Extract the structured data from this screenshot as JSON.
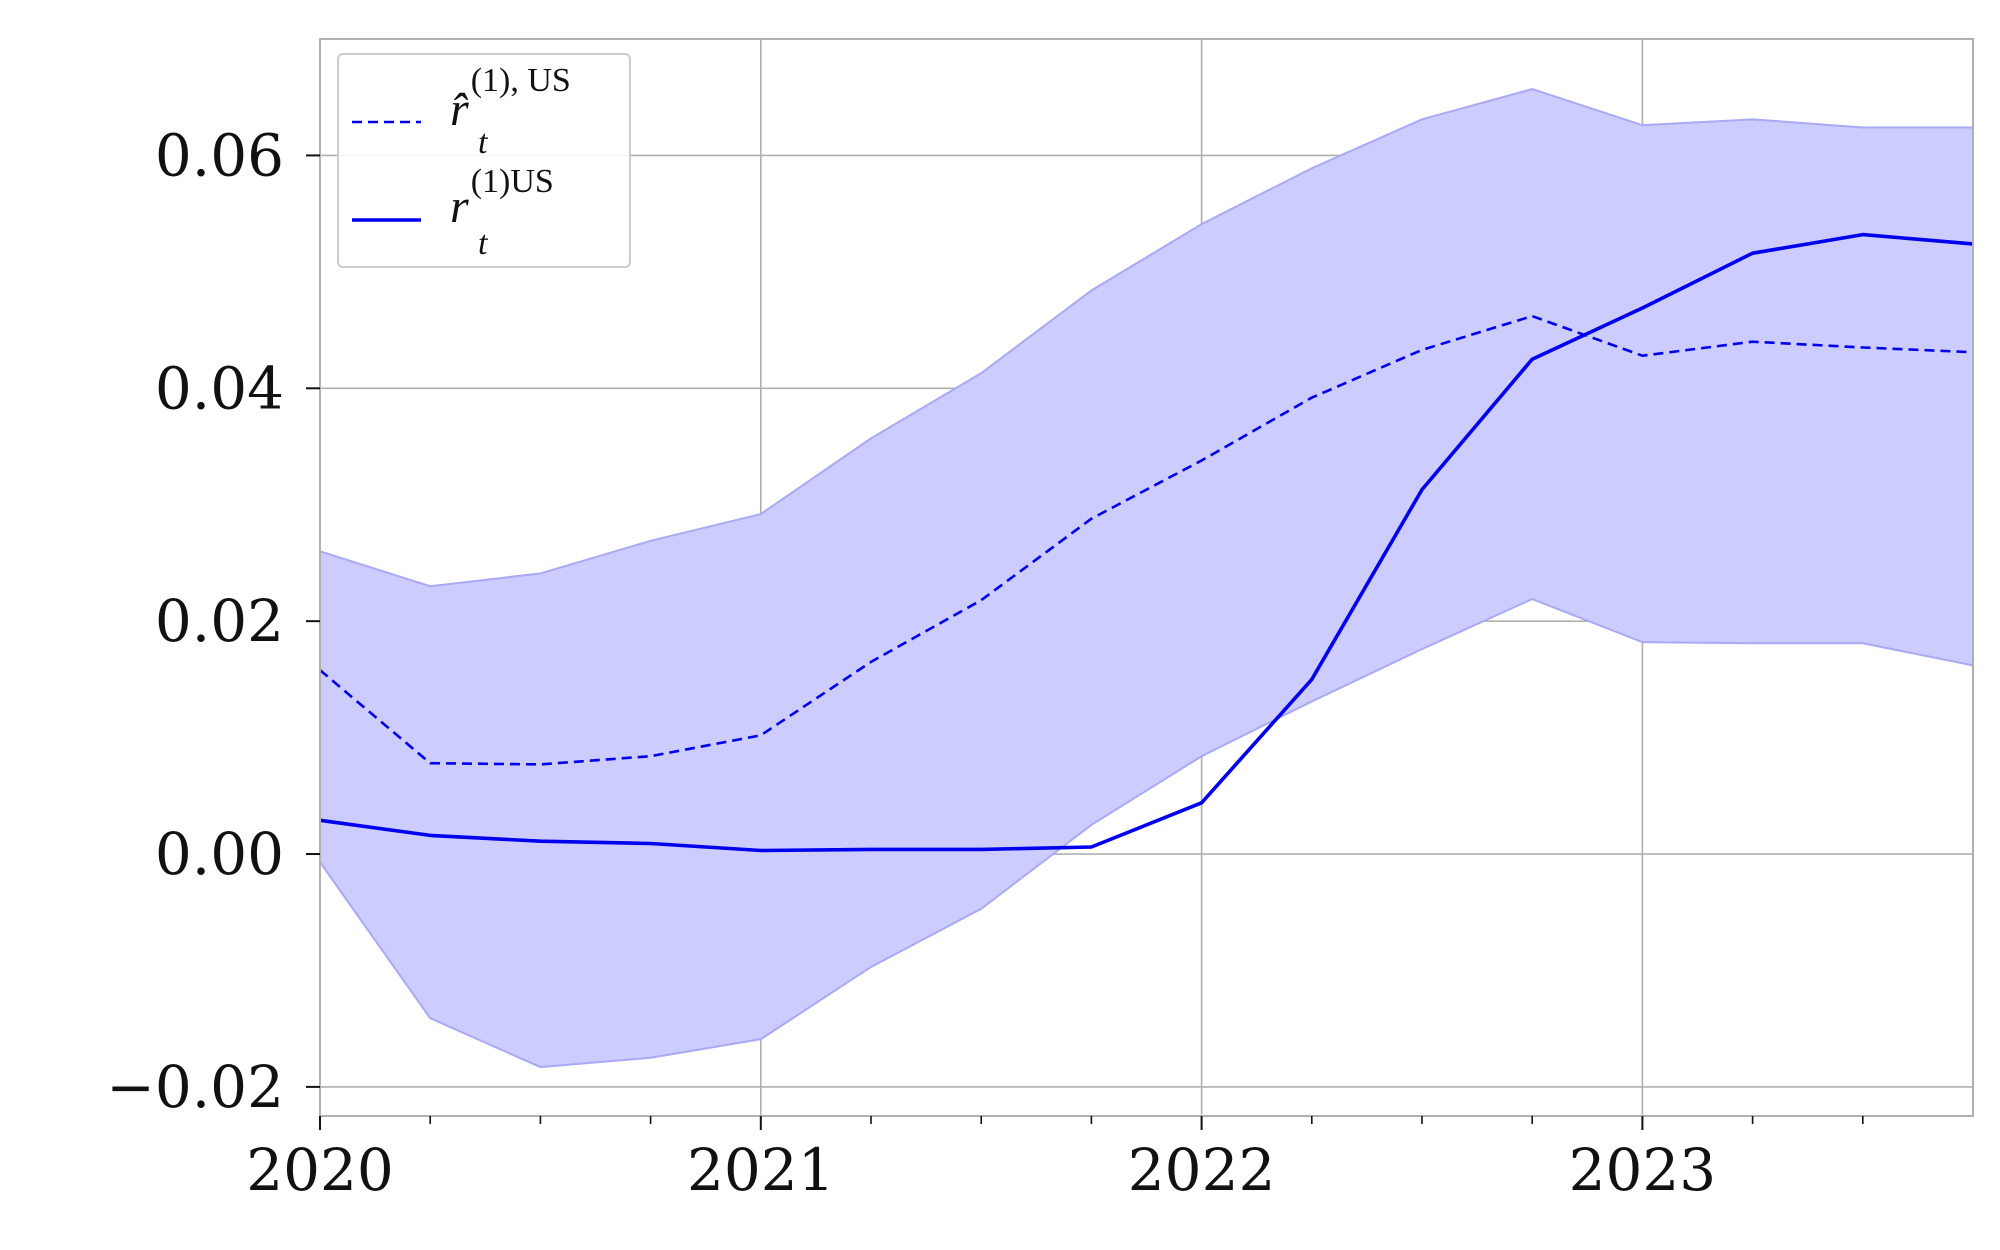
{
  "chart_data": {
    "type": "line",
    "title": "",
    "xlabel": "",
    "ylabel": "",
    "xlim": [
      2020.0,
      2023.75
    ],
    "ylim": [
      -0.0225,
      0.07
    ],
    "x_ticks": [
      2020,
      2021,
      2022,
      2023
    ],
    "x_tick_labels": [
      "2020",
      "2021",
      "2022",
      "2023"
    ],
    "x_minor_ticks": [
      2020.25,
      2020.5,
      2020.75,
      2021.25,
      2021.5,
      2021.75,
      2022.25,
      2022.5,
      2022.75,
      2023.25,
      2023.5
    ],
    "y_ticks": [
      -0.02,
      0.0,
      0.02,
      0.04,
      0.06
    ],
    "y_tick_labels": [
      "−0.02",
      "0.00",
      "0.02",
      "0.04",
      "0.06"
    ],
    "grid": true,
    "legend_position": "top-left",
    "x": [
      2020.0,
      2020.25,
      2020.5,
      2020.75,
      2021.0,
      2021.25,
      2021.5,
      2021.75,
      2022.0,
      2022.25,
      2022.5,
      2022.75,
      2023.0,
      2023.25,
      2023.5,
      2023.75
    ],
    "series": [
      {
        "name": "r̂t(1), US",
        "label_parts": {
          "base": "r̂",
          "sup": "(1), US",
          "sub": "t"
        },
        "style": "dashed",
        "color": "#0000ee",
        "values": [
          0.0158,
          0.0078,
          0.0077,
          0.0084,
          0.0102,
          0.0165,
          0.0218,
          0.0288,
          0.0338,
          0.0392,
          0.0433,
          0.0462,
          0.0428,
          0.044,
          0.0435,
          0.0431
        ]
      },
      {
        "name": "rt(1)US",
        "label_parts": {
          "base": "r",
          "sup": "(1)US",
          "sub": "t"
        },
        "style": "solid",
        "color": "#0000ee",
        "values": [
          0.0029,
          0.0016,
          0.0011,
          0.0009,
          0.0003,
          0.0004,
          0.0004,
          0.0006,
          0.0044,
          0.015,
          0.0313,
          0.0425,
          0.0469,
          0.0516,
          0.0532,
          0.0524
        ]
      }
    ],
    "band": {
      "color": "#ccccff",
      "edge_color": "#a9a9f5",
      "upper": [
        0.026,
        0.023,
        0.0241,
        0.0269,
        0.0292,
        0.0357,
        0.0413,
        0.0484,
        0.0541,
        0.0589,
        0.0631,
        0.0657,
        0.0626,
        0.0631,
        0.0624,
        0.0624
      ],
      "lower": [
        -0.0007,
        -0.0141,
        -0.0183,
        -0.0175,
        -0.0159,
        -0.0097,
        -0.0047,
        0.0025,
        0.0084,
        0.0131,
        0.0176,
        0.0219,
        0.0182,
        0.0181,
        0.0181,
        0.0162
      ]
    }
  }
}
